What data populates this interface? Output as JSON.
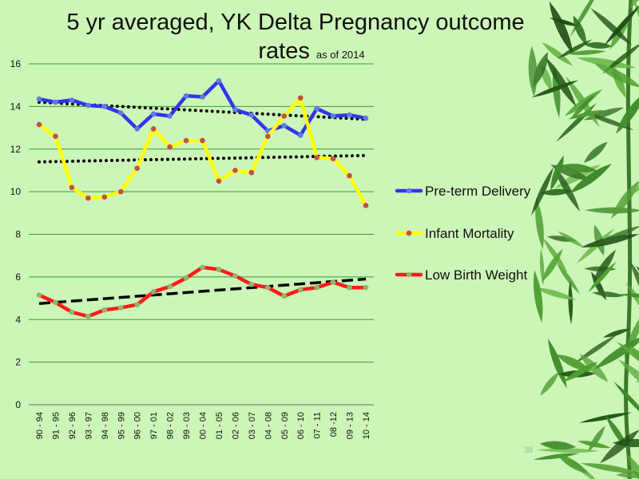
{
  "slide": {
    "title_line1": "5 yr averaged, YK Delta Pregnancy outcome",
    "title_line2": "rates",
    "title_note": "as of 2014",
    "page_number": "38"
  },
  "chart_data": {
    "type": "line",
    "categories": [
      "90 - 94",
      "91 - 95",
      "92 - 96",
      "93 - 97",
      "94 - 98",
      "95 - 99",
      "96 - 00",
      "97 - 01",
      "98 - 02",
      "99 - 03",
      "00 - 04",
      "01 - 05",
      "02 - 06",
      "03 - 07",
      "04 - 08",
      "05 - 09",
      "06 - 10",
      "07 - 11",
      "08 -12",
      "09 - 13",
      "10 - 14"
    ],
    "ylim": [
      0,
      16
    ],
    "yticks": [
      0,
      2,
      4,
      6,
      8,
      10,
      12,
      14,
      16
    ],
    "grid": true,
    "legend_position": "right",
    "series": [
      {
        "name": "Pre-term Delivery",
        "color": "#3333ee",
        "marker_color": "#5a7fe0",
        "values": [
          14.35,
          14.2,
          14.3,
          14.05,
          14.0,
          13.7,
          12.95,
          13.65,
          13.55,
          14.5,
          14.45,
          15.2,
          13.85,
          13.6,
          12.85,
          13.1,
          12.65,
          13.9,
          13.55,
          13.6,
          13.45
        ],
        "trend": {
          "start": 14.2,
          "end": 13.4,
          "style": "dotted"
        }
      },
      {
        "name": "Infant Mortality",
        "color": "#ffff00",
        "marker_color": "#c0504d",
        "values": [
          13.15,
          12.6,
          10.2,
          9.7,
          9.75,
          10.0,
          11.1,
          12.95,
          12.1,
          12.4,
          12.4,
          10.5,
          11.0,
          10.9,
          12.6,
          13.55,
          14.4,
          11.6,
          11.55,
          10.75,
          9.35
        ],
        "trend": {
          "start": 11.4,
          "end": 11.7,
          "style": "dotted"
        }
      },
      {
        "name": "Low Birth Weight",
        "color": "#ff1a1a",
        "marker_color": "#8db86a",
        "values": [
          5.15,
          4.8,
          4.35,
          4.15,
          4.45,
          4.55,
          4.7,
          5.3,
          5.55,
          5.95,
          6.45,
          6.35,
          6.05,
          5.65,
          5.5,
          5.1,
          5.4,
          5.5,
          5.75,
          5.5,
          5.5
        ],
        "trend": {
          "start": 4.75,
          "end": 5.9,
          "style": "dashed"
        }
      }
    ]
  }
}
